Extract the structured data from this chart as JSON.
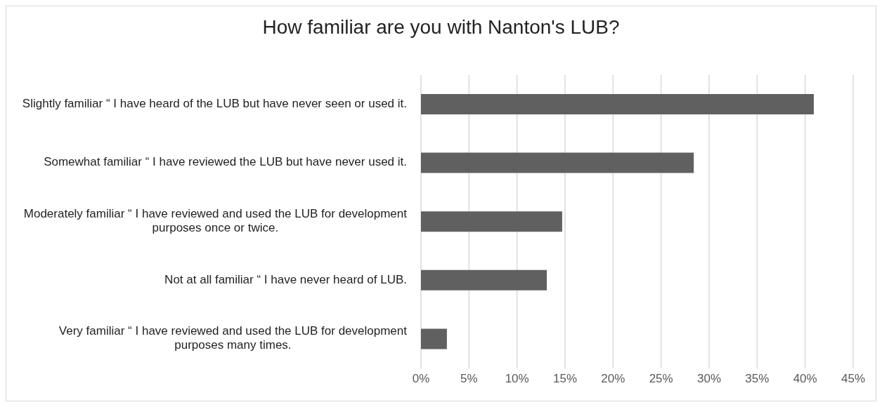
{
  "chart_data": {
    "type": "bar",
    "orientation": "horizontal",
    "title": "How familiar are you with Nanton's LUB?",
    "categories": [
      "Slightly familiar “ I have heard of the LUB but have never seen or used it.",
      "Somewhat familiar “ I have reviewed the LUB but have never used it.",
      "Moderately familiar “ I have reviewed and used the LUB for development purposes once or twice.",
      "Not at all familiar “ I have never heard of LUB.",
      "Very familiar “ I have reviewed and used the LUB for development purposes many times."
    ],
    "values": [
      40.9,
      28.4,
      14.7,
      13.1,
      2.7
    ],
    "color": "#606060",
    "xlim": [
      0,
      45
    ],
    "xticks": [
      {
        "value": 0,
        "label": "0%"
      },
      {
        "value": 5,
        "label": "5%"
      },
      {
        "value": 10,
        "label": "10%"
      },
      {
        "value": 15,
        "label": "15%"
      },
      {
        "value": 20,
        "label": "20%"
      },
      {
        "value": 25,
        "label": "25%"
      },
      {
        "value": 30,
        "label": "30%"
      },
      {
        "value": 35,
        "label": "35%"
      },
      {
        "value": 40,
        "label": "40%"
      },
      {
        "value": 45,
        "label": "45%"
      }
    ],
    "grid": "x",
    "legend": false
  }
}
